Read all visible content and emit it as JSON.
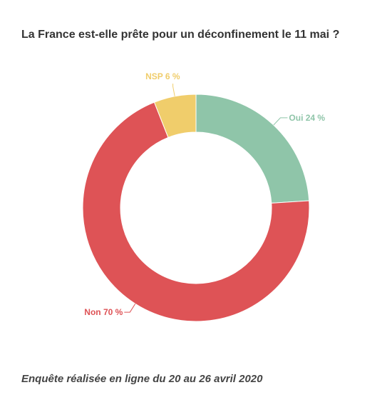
{
  "chart_data": {
    "type": "pie",
    "title": "La France est-elle prête pour un déconfinement le 11 mai ?",
    "footer": "Enquête réalisée en ligne du 20 au 26 avril 2020",
    "donut": true,
    "slices": [
      {
        "label": "Oui 24 %",
        "name": "Oui",
        "value": 24,
        "color": "#8fc5a9"
      },
      {
        "label": "Non 70 %",
        "name": "Non",
        "value": 70,
        "color": "#de5356"
      },
      {
        "label": "NSP 6 %",
        "name": "NSP",
        "value": 6,
        "color": "#f0cd6b"
      }
    ]
  }
}
